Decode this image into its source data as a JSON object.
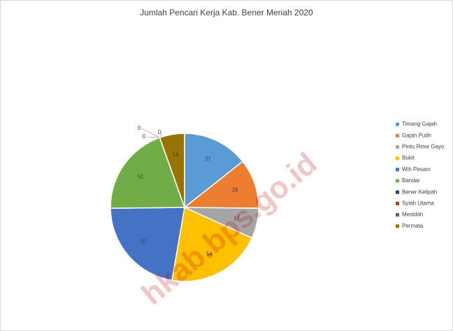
{
  "chart_data": {
    "type": "pie",
    "title": "Jumlah Pencari Kerja Kab. Bener Meriah 2020",
    "categories": [
      "Timang Gajah",
      "Gajah Putih",
      "Pintu Rime Gayo",
      "Bukit",
      "Wih Pesam",
      "Bandar",
      "Bener Kelipah",
      "Syiah Utama",
      "Mesidah",
      "Permata"
    ],
    "values": [
      37,
      28,
      17,
      54,
      57,
      51,
      0,
      0,
      0,
      14
    ],
    "colors": [
      "#5b9bd5",
      "#ed7d31",
      "#a5a5a5",
      "#ffc000",
      "#4472c4",
      "#70ad47",
      "#264478",
      "#9e480e",
      "#636363",
      "#997300"
    ],
    "legend": "right",
    "watermark": "hkab.bps.go.id"
  }
}
